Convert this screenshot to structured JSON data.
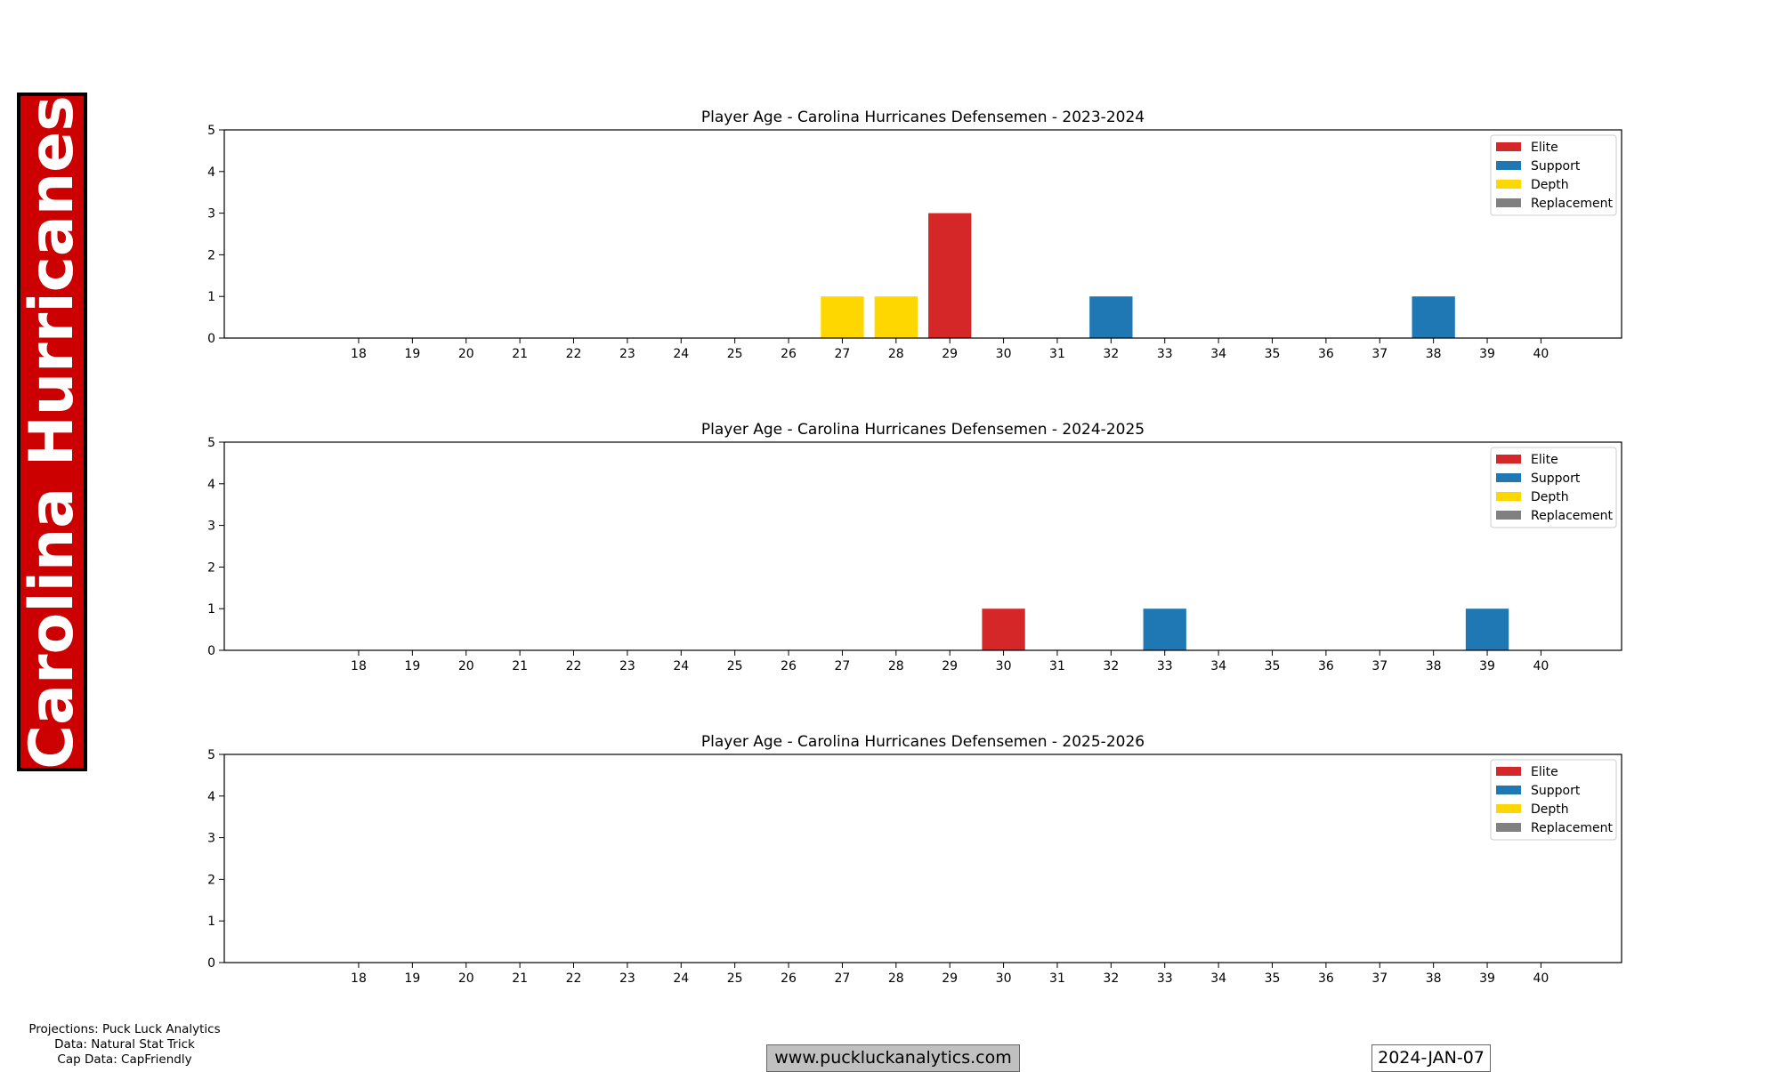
{
  "team_name": "Carolina Hurricanes",
  "credits": {
    "projections": "Projections: Puck Luck Analytics",
    "data": "Data: Natural Stat Trick",
    "cap": "Cap Data: CapFriendly"
  },
  "website": "www.puckluckanalytics.com",
  "date": "2024-JAN-07",
  "colors": {
    "banner": "#cc0000",
    "Elite": "#d62728",
    "Support": "#1f77b4",
    "Depth": "#ffd700",
    "Replacement": "#808080"
  },
  "chart_data": [
    {
      "type": "bar",
      "title": "Player Age - Carolina Hurricanes Defensemen - 2023-2024",
      "categories": [
        18,
        19,
        20,
        21,
        22,
        23,
        24,
        25,
        26,
        27,
        28,
        29,
        30,
        31,
        32,
        33,
        34,
        35,
        36,
        37,
        38,
        39,
        40
      ],
      "ylim": [
        0,
        5
      ],
      "yticks": [
        0,
        1,
        2,
        3,
        4,
        5
      ],
      "legend": "top-right",
      "series": [
        {
          "name": "Elite",
          "color": "#d62728",
          "values": [
            0,
            0,
            0,
            0,
            0,
            0,
            0,
            0,
            0,
            0,
            0,
            3,
            0,
            0,
            0,
            0,
            0,
            0,
            0,
            0,
            0,
            0,
            0
          ]
        },
        {
          "name": "Support",
          "color": "#1f77b4",
          "values": [
            0,
            0,
            0,
            0,
            0,
            0,
            0,
            0,
            0,
            0,
            0,
            0,
            0,
            0,
            1,
            0,
            0,
            0,
            0,
            0,
            1,
            0,
            0
          ]
        },
        {
          "name": "Depth",
          "color": "#ffd700",
          "values": [
            0,
            0,
            0,
            0,
            0,
            0,
            0,
            0,
            0,
            1,
            1,
            0,
            0,
            0,
            0,
            0,
            0,
            0,
            0,
            0,
            0,
            0,
            0
          ]
        },
        {
          "name": "Replacement",
          "color": "#808080",
          "values": [
            0,
            0,
            0,
            0,
            0,
            0,
            0,
            0,
            0,
            0,
            0,
            0,
            0,
            0,
            0,
            0,
            0,
            0,
            0,
            0,
            0,
            0,
            0
          ]
        }
      ]
    },
    {
      "type": "bar",
      "title": "Player Age - Carolina Hurricanes Defensemen - 2024-2025",
      "categories": [
        18,
        19,
        20,
        21,
        22,
        23,
        24,
        25,
        26,
        27,
        28,
        29,
        30,
        31,
        32,
        33,
        34,
        35,
        36,
        37,
        38,
        39,
        40
      ],
      "ylim": [
        0,
        5
      ],
      "yticks": [
        0,
        1,
        2,
        3,
        4,
        5
      ],
      "legend": "top-right",
      "series": [
        {
          "name": "Elite",
          "color": "#d62728",
          "values": [
            0,
            0,
            0,
            0,
            0,
            0,
            0,
            0,
            0,
            0,
            0,
            0,
            1,
            0,
            0,
            0,
            0,
            0,
            0,
            0,
            0,
            0,
            0
          ]
        },
        {
          "name": "Support",
          "color": "#1f77b4",
          "values": [
            0,
            0,
            0,
            0,
            0,
            0,
            0,
            0,
            0,
            0,
            0,
            0,
            0,
            0,
            0,
            1,
            0,
            0,
            0,
            0,
            0,
            1,
            0
          ]
        },
        {
          "name": "Depth",
          "color": "#ffd700",
          "values": [
            0,
            0,
            0,
            0,
            0,
            0,
            0,
            0,
            0,
            0,
            0,
            0,
            0,
            0,
            0,
            0,
            0,
            0,
            0,
            0,
            0,
            0,
            0
          ]
        },
        {
          "name": "Replacement",
          "color": "#808080",
          "values": [
            0,
            0,
            0,
            0,
            0,
            0,
            0,
            0,
            0,
            0,
            0,
            0,
            0,
            0,
            0,
            0,
            0,
            0,
            0,
            0,
            0,
            0,
            0
          ]
        }
      ]
    },
    {
      "type": "bar",
      "title": "Player Age - Carolina Hurricanes Defensemen - 2025-2026",
      "categories": [
        18,
        19,
        20,
        21,
        22,
        23,
        24,
        25,
        26,
        27,
        28,
        29,
        30,
        31,
        32,
        33,
        34,
        35,
        36,
        37,
        38,
        39,
        40
      ],
      "ylim": [
        0,
        5
      ],
      "yticks": [
        0,
        1,
        2,
        3,
        4,
        5
      ],
      "legend": "top-right",
      "series": [
        {
          "name": "Elite",
          "color": "#d62728",
          "values": [
            0,
            0,
            0,
            0,
            0,
            0,
            0,
            0,
            0,
            0,
            0,
            0,
            0,
            0,
            0,
            0,
            0,
            0,
            0,
            0,
            0,
            0,
            0
          ]
        },
        {
          "name": "Support",
          "color": "#1f77b4",
          "values": [
            0,
            0,
            0,
            0,
            0,
            0,
            0,
            0,
            0,
            0,
            0,
            0,
            0,
            0,
            0,
            0,
            0,
            0,
            0,
            0,
            0,
            0,
            0
          ]
        },
        {
          "name": "Depth",
          "color": "#ffd700",
          "values": [
            0,
            0,
            0,
            0,
            0,
            0,
            0,
            0,
            0,
            0,
            0,
            0,
            0,
            0,
            0,
            0,
            0,
            0,
            0,
            0,
            0,
            0,
            0
          ]
        },
        {
          "name": "Replacement",
          "color": "#808080",
          "values": [
            0,
            0,
            0,
            0,
            0,
            0,
            0,
            0,
            0,
            0,
            0,
            0,
            0,
            0,
            0,
            0,
            0,
            0,
            0,
            0,
            0,
            0,
            0
          ]
        }
      ]
    }
  ]
}
